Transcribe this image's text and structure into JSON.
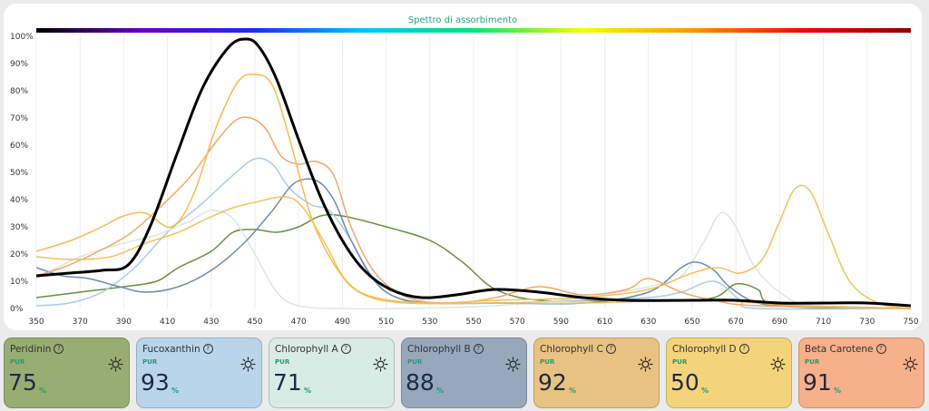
{
  "chart_data": {
    "type": "line",
    "title": "Spettro di assorbimento",
    "xlabel": "",
    "ylabel": "",
    "xlim": [
      350,
      750
    ],
    "ylim": [
      0,
      100
    ],
    "x_ticks": [
      350,
      370,
      390,
      410,
      430,
      450,
      470,
      490,
      510,
      530,
      550,
      570,
      590,
      610,
      630,
      650,
      670,
      690,
      710,
      730,
      750
    ],
    "y_ticks": [
      "0%",
      "10%",
      "20%",
      "30%",
      "40%",
      "50%",
      "60%",
      "70%",
      "80%",
      "90%",
      "100%"
    ],
    "y_tick_values": [
      0,
      10,
      20,
      30,
      40,
      50,
      60,
      70,
      80,
      90,
      100
    ],
    "grid": "vertical",
    "legend": "none",
    "spectrum_bar_colors": [
      "#000000",
      "#6a00c8",
      "#1d2bff",
      "#00c8ff",
      "#00e676",
      "#f5ff00",
      "#ff9800",
      "#ff0000",
      "#8b0000"
    ],
    "series": [
      {
        "color": "#6b8e3e",
        "points": [
          [
            350,
            4
          ],
          [
            370,
            6
          ],
          [
            390,
            8
          ],
          [
            405,
            10
          ],
          [
            415,
            15
          ],
          [
            430,
            21
          ],
          [
            440,
            28
          ],
          [
            450,
            29
          ],
          [
            460,
            28
          ],
          [
            470,
            30
          ],
          [
            480,
            34
          ],
          [
            490,
            34
          ],
          [
            510,
            30
          ],
          [
            530,
            25
          ],
          [
            545,
            17
          ],
          [
            560,
            7
          ],
          [
            580,
            3
          ],
          [
            610,
            3
          ],
          [
            640,
            3
          ],
          [
            660,
            4
          ],
          [
            670,
            9
          ],
          [
            680,
            7
          ],
          [
            690,
            1
          ],
          [
            750,
            0
          ]
        ]
      },
      {
        "color": "#a9cde6",
        "points": [
          [
            350,
            1
          ],
          [
            365,
            2
          ],
          [
            380,
            6
          ],
          [
            395,
            15
          ],
          [
            410,
            28
          ],
          [
            425,
            38
          ],
          [
            440,
            49
          ],
          [
            450,
            55
          ],
          [
            458,
            53
          ],
          [
            466,
            44
          ],
          [
            476,
            38
          ],
          [
            484,
            36
          ],
          [
            494,
            25
          ],
          [
            502,
            13
          ],
          [
            512,
            5
          ],
          [
            530,
            2
          ],
          [
            560,
            2
          ],
          [
            600,
            3
          ],
          [
            630,
            4
          ],
          [
            645,
            6
          ],
          [
            660,
            10
          ],
          [
            672,
            3
          ],
          [
            680,
            0
          ],
          [
            750,
            0
          ]
        ]
      },
      {
        "color": "#d9e7e3",
        "points": [
          [
            350,
            11
          ],
          [
            370,
            19
          ],
          [
            390,
            24
          ],
          [
            405,
            27
          ],
          [
            420,
            32
          ],
          [
            430,
            36
          ],
          [
            440,
            33
          ],
          [
            450,
            20
          ],
          [
            460,
            6
          ],
          [
            470,
            1
          ],
          [
            490,
            0
          ],
          [
            520,
            0
          ],
          [
            560,
            1
          ],
          [
            600,
            4
          ],
          [
            630,
            8
          ],
          [
            645,
            12
          ],
          [
            655,
            24
          ],
          [
            663,
            35
          ],
          [
            670,
            30
          ],
          [
            678,
            16
          ],
          [
            690,
            6
          ],
          [
            705,
            1
          ],
          [
            750,
            0
          ]
        ]
      },
      {
        "color": "#6f8bb0",
        "points": [
          [
            350,
            15
          ],
          [
            362,
            12
          ],
          [
            374,
            11
          ],
          [
            388,
            8
          ],
          [
            400,
            6
          ],
          [
            415,
            8
          ],
          [
            430,
            14
          ],
          [
            445,
            24
          ],
          [
            458,
            36
          ],
          [
            468,
            46
          ],
          [
            478,
            47
          ],
          [
            486,
            40
          ],
          [
            494,
            25
          ],
          [
            505,
            10
          ],
          [
            515,
            4
          ],
          [
            530,
            2
          ],
          [
            560,
            2
          ],
          [
            600,
            2
          ],
          [
            630,
            6
          ],
          [
            645,
            15
          ],
          [
            652,
            17
          ],
          [
            660,
            14
          ],
          [
            667,
            8
          ],
          [
            680,
            2
          ],
          [
            700,
            1
          ],
          [
            750,
            0
          ]
        ]
      },
      {
        "color": "#f3a766",
        "points": [
          [
            350,
            12
          ],
          [
            362,
            15
          ],
          [
            376,
            20
          ],
          [
            392,
            27
          ],
          [
            405,
            36
          ],
          [
            420,
            48
          ],
          [
            432,
            61
          ],
          [
            441,
            69
          ],
          [
            448,
            70
          ],
          [
            455,
            66
          ],
          [
            462,
            56
          ],
          [
            470,
            53
          ],
          [
            478,
            54
          ],
          [
            486,
            49
          ],
          [
            494,
            30
          ],
          [
            505,
            13
          ],
          [
            520,
            4
          ],
          [
            540,
            2
          ],
          [
            560,
            4
          ],
          [
            580,
            8
          ],
          [
            600,
            5
          ],
          [
            620,
            7
          ],
          [
            630,
            11
          ],
          [
            645,
            6
          ],
          [
            660,
            3
          ],
          [
            680,
            1
          ],
          [
            750,
            0
          ]
        ]
      },
      {
        "color": "#f6c157",
        "points": [
          [
            350,
            19
          ],
          [
            366,
            18
          ],
          [
            384,
            19
          ],
          [
            400,
            24
          ],
          [
            415,
            28
          ],
          [
            428,
            33
          ],
          [
            440,
            37
          ],
          [
            450,
            39
          ],
          [
            464,
            41
          ],
          [
            472,
            37
          ],
          [
            482,
            24
          ],
          [
            492,
            10
          ],
          [
            505,
            4
          ],
          [
            530,
            2
          ],
          [
            560,
            3
          ],
          [
            600,
            4
          ],
          [
            630,
            7
          ],
          [
            650,
            13
          ],
          [
            662,
            15
          ],
          [
            672,
            13
          ],
          [
            682,
            18
          ],
          [
            690,
            32
          ],
          [
            697,
            44
          ],
          [
            704,
            43
          ],
          [
            712,
            28
          ],
          [
            722,
            10
          ],
          [
            735,
            2
          ],
          [
            750,
            0
          ]
        ]
      },
      {
        "color": "#f8b94e",
        "points": [
          [
            350,
            21
          ],
          [
            366,
            25
          ],
          [
            380,
            30
          ],
          [
            390,
            34
          ],
          [
            400,
            35
          ],
          [
            412,
            30
          ],
          [
            422,
            42
          ],
          [
            432,
            66
          ],
          [
            442,
            83
          ],
          [
            450,
            86
          ],
          [
            458,
            82
          ],
          [
            466,
            62
          ],
          [
            476,
            33
          ],
          [
            488,
            14
          ],
          [
            500,
            5
          ],
          [
            520,
            2
          ],
          [
            560,
            2
          ],
          [
            600,
            2
          ],
          [
            640,
            3
          ],
          [
            660,
            3
          ],
          [
            680,
            2
          ],
          [
            700,
            1
          ],
          [
            750,
            0
          ]
        ]
      },
      {
        "color": "#000000",
        "points": [
          [
            350,
            12
          ],
          [
            365,
            13
          ],
          [
            380,
            14
          ],
          [
            392,
            16
          ],
          [
            402,
            30
          ],
          [
            414,
            56
          ],
          [
            426,
            81
          ],
          [
            438,
            96
          ],
          [
            446,
            99
          ],
          [
            452,
            96
          ],
          [
            460,
            84
          ],
          [
            470,
            62
          ],
          [
            480,
            41
          ],
          [
            490,
            25
          ],
          [
            500,
            14
          ],
          [
            512,
            7
          ],
          [
            526,
            4
          ],
          [
            542,
            5
          ],
          [
            560,
            7
          ],
          [
            580,
            6
          ],
          [
            600,
            4
          ],
          [
            620,
            3
          ],
          [
            650,
            3
          ],
          [
            670,
            3
          ],
          [
            690,
            2
          ],
          [
            710,
            2
          ],
          [
            730,
            2
          ],
          [
            750,
            1
          ]
        ],
        "stroke_width": 3
      }
    ]
  },
  "cards": [
    {
      "name": "Peridinin",
      "pur_label": "PUR",
      "value": "75",
      "unit": "%",
      "bg": "#98ad72"
    },
    {
      "name": "Fucoxanthin",
      "pur_label": "PUR",
      "value": "93",
      "unit": "%",
      "bg": "#b9d5eb"
    },
    {
      "name": "Chlorophyll A",
      "pur_label": "PUR",
      "value": "71",
      "unit": "%",
      "bg": "#d9ebe5"
    },
    {
      "name": "Chlorophyll B",
      "pur_label": "PUR",
      "value": "88",
      "unit": "%",
      "bg": "#97a8bd"
    },
    {
      "name": "Chlorophyll C",
      "pur_label": "PUR",
      "value": "92",
      "unit": "%",
      "bg": "#e7c282"
    },
    {
      "name": "Chlorophyll D",
      "pur_label": "PUR",
      "value": "50",
      "unit": "%",
      "bg": "#f3d47a"
    },
    {
      "name": "Beta Carotene",
      "pur_label": "PUR",
      "value": "91",
      "unit": "%",
      "bg": "#f6b08a"
    }
  ],
  "icons": {
    "help": "question-circle-icon",
    "help_glyph": "?",
    "light": "sun-icon"
  }
}
